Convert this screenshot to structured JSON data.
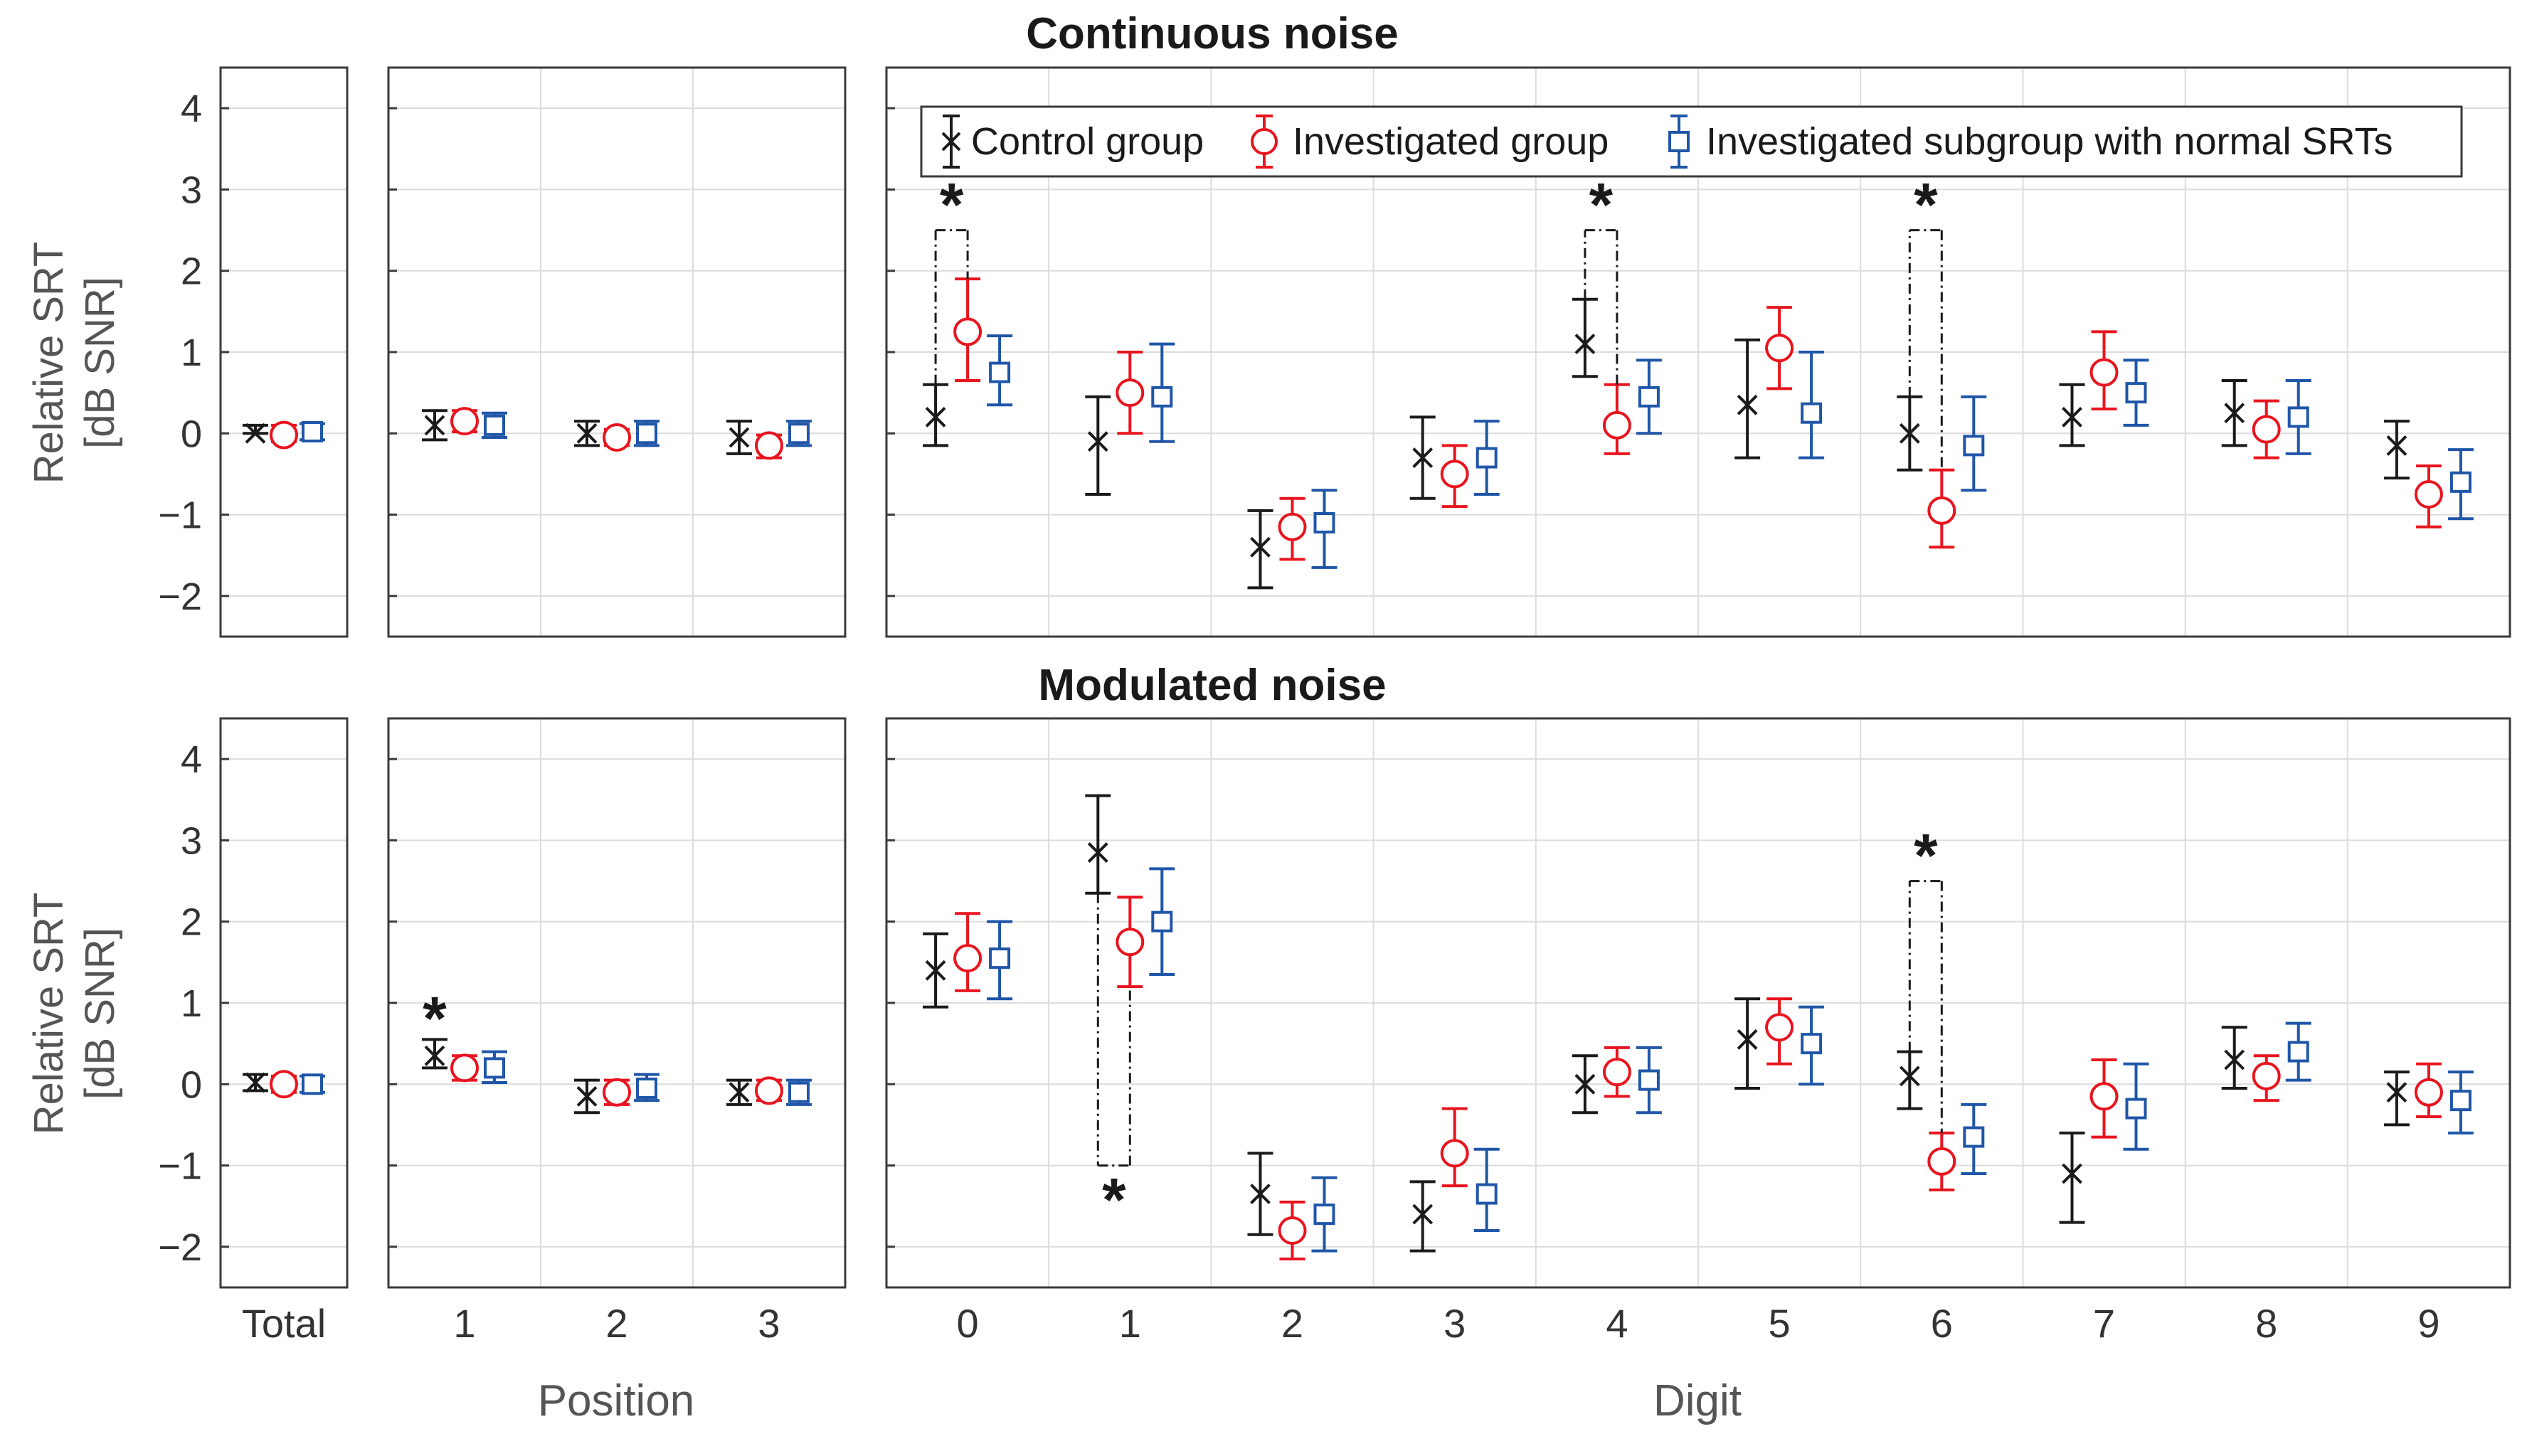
{
  "figure": {
    "ylabel_line1": "Relative SRT",
    "ylabel_line2": "[dB SNR]",
    "position_label": "Position",
    "digit_label": "Digit"
  },
  "legend": {
    "entries": [
      {
        "label": "Control group",
        "marker": "x",
        "color": "#1a1a1a"
      },
      {
        "label": "Investigated group",
        "marker": "o",
        "color": "#e8141e"
      },
      {
        "label": "Investigated subgroup with normal SRTs",
        "marker": "s",
        "color": "#1f56a8"
      }
    ]
  },
  "colors": {
    "control": "#1a1a1a",
    "investigated": "#e8141e",
    "subgroup": "#1f56a8",
    "grid": "#dcdcdc",
    "axis": "#3a3a3a"
  },
  "chart_data": [
    {
      "type": "errorbar",
      "title": "Continuous noise",
      "ylabel": "Relative SRT [dB SNR]",
      "ylim": [
        -2.5,
        4.5
      ],
      "yticks": [
        "4",
        "3",
        "2",
        "1",
        "0",
        "−1",
        "−2"
      ],
      "groups": {
        "total": {
          "categories": [
            "Total"
          ],
          "series": [
            {
              "name": "Control group",
              "values": [
                0.0
              ],
              "err": [
                [
                  0.0,
                  0.1
                ]
              ]
            },
            {
              "name": "Investigated group",
              "values": [
                -0.02
              ],
              "err": [
                [
                  -0.1,
                  0.1
                ]
              ]
            },
            {
              "name": "Investigated subgroup with normal SRTs",
              "values": [
                0.02
              ],
              "err": [
                [
                  -0.08,
                  0.12
                ]
              ]
            }
          ]
        },
        "position": {
          "categories": [
            "1",
            "2",
            "3"
          ],
          "xlabel": "Position",
          "series": [
            {
              "name": "Control group",
              "values": [
                0.1,
                0.0,
                -0.05
              ],
              "err": [
                [
                  -0.08,
                  0.28
                ],
                [
                  -0.15,
                  0.15
                ],
                [
                  -0.25,
                  0.15
                ]
              ]
            },
            {
              "name": "Investigated group",
              "values": [
                0.15,
                -0.05,
                -0.15
              ],
              "err": [
                [
                  0.02,
                  0.28
                ],
                [
                  -0.15,
                  0.05
                ],
                [
                  -0.3,
                  -0.02
                ]
              ]
            },
            {
              "name": "Investigated subgroup with normal SRTs",
              "values": [
                0.1,
                0.0,
                0.0
              ],
              "err": [
                [
                  -0.05,
                  0.25
                ],
                [
                  -0.15,
                  0.15
                ],
                [
                  -0.15,
                  0.15
                ]
              ]
            }
          ]
        },
        "digit": {
          "categories": [
            "0",
            "1",
            "2",
            "3",
            "4",
            "5",
            "6",
            "7",
            "8",
            "9"
          ],
          "xlabel": "Digit",
          "series": [
            {
              "name": "Control group",
              "values": [
                0.2,
                -0.1,
                -1.4,
                -0.3,
                1.1,
                0.35,
                0.0,
                0.2,
                0.25,
                -0.15
              ],
              "err": [
                [
                  -0.15,
                  0.6
                ],
                [
                  -0.75,
                  0.45
                ],
                [
                  -1.9,
                  -0.95
                ],
                [
                  -0.8,
                  0.2
                ],
                [
                  0.7,
                  1.65
                ],
                [
                  -0.3,
                  1.15
                ],
                [
                  -0.45,
                  0.45
                ],
                [
                  -0.15,
                  0.6
                ],
                [
                  -0.15,
                  0.65
                ],
                [
                  -0.55,
                  0.15
                ]
              ]
            },
            {
              "name": "Investigated group",
              "values": [
                1.25,
                0.5,
                -1.15,
                -0.5,
                0.1,
                1.05,
                -0.95,
                0.75,
                0.05,
                -0.75
              ],
              "err": [
                [
                  0.65,
                  1.9
                ],
                [
                  0.0,
                  1.0
                ],
                [
                  -1.55,
                  -0.8
                ],
                [
                  -0.9,
                  -0.15
                ],
                [
                  -0.25,
                  0.6
                ],
                [
                  0.55,
                  1.55
                ],
                [
                  -1.4,
                  -0.45
                ],
                [
                  0.3,
                  1.25
                ],
                [
                  -0.3,
                  0.4
                ],
                [
                  -1.15,
                  -0.4
                ]
              ]
            },
            {
              "name": "Investigated subgroup with normal SRTs",
              "values": [
                0.75,
                0.45,
                -1.1,
                -0.3,
                0.45,
                0.25,
                -0.15,
                0.5,
                0.2,
                -0.6
              ],
              "err": [
                [
                  0.35,
                  1.2
                ],
                [
                  -0.1,
                  1.1
                ],
                [
                  -1.65,
                  -0.7
                ],
                [
                  -0.75,
                  0.15
                ],
                [
                  0.0,
                  0.9
                ],
                [
                  -0.3,
                  1.0
                ],
                [
                  -0.7,
                  0.45
                ],
                [
                  0.1,
                  0.9
                ],
                [
                  -0.25,
                  0.65
                ],
                [
                  -1.05,
                  -0.2
                ]
              ]
            }
          ]
        }
      },
      "significance": [
        {
          "group": "digit",
          "index": 0,
          "from": "Control group",
          "to": "Investigated group",
          "y": 2.5,
          "label": "*",
          "label_pos": "above"
        },
        {
          "group": "digit",
          "index": 4,
          "from": "Control group",
          "to": "Investigated group",
          "y": 2.5,
          "label": "*",
          "label_pos": "above"
        },
        {
          "group": "digit",
          "index": 6,
          "from": "Control group",
          "to": "Investigated group",
          "y": 2.5,
          "label": "*",
          "label_pos": "above"
        }
      ],
      "position_stars": []
    },
    {
      "type": "errorbar",
      "title": "Modulated noise",
      "ylabel": "Relative SRT [dB SNR]",
      "ylim": [
        -2.5,
        4.5
      ],
      "yticks": [
        "4",
        "3",
        "2",
        "1",
        "0",
        "−1",
        "−2"
      ],
      "groups": {
        "total": {
          "categories": [
            "Total"
          ],
          "series": [
            {
              "name": "Control group",
              "values": [
                0.02
              ],
              "err": [
                [
                  -0.08,
                  0.12
                ]
              ]
            },
            {
              "name": "Investigated group",
              "values": [
                0.0
              ],
              "err": [
                [
                  -0.1,
                  0.1
                ]
              ]
            },
            {
              "name": "Investigated subgroup with normal SRTs",
              "values": [
                0.0
              ],
              "err": [
                [
                  -0.1,
                  0.1
                ]
              ]
            }
          ]
        },
        "position": {
          "categories": [
            "1",
            "2",
            "3"
          ],
          "xlabel": "Position",
          "series": [
            {
              "name": "Control group",
              "values": [
                0.35,
                -0.15,
                -0.1
              ],
              "err": [
                [
                  0.2,
                  0.55
                ],
                [
                  -0.35,
                  0.05
                ],
                [
                  -0.25,
                  0.05
                ]
              ]
            },
            {
              "name": "Investigated group",
              "values": [
                0.2,
                -0.1,
                -0.08
              ],
              "err": [
                [
                  0.05,
                  0.35
                ],
                [
                  -0.25,
                  0.05
                ],
                [
                  -0.2,
                  0.05
                ]
              ]
            },
            {
              "name": "Investigated subgroup with normal SRTs",
              "values": [
                0.2,
                -0.05,
                -0.1
              ],
              "err": [
                [
                  0.02,
                  0.4
                ],
                [
                  -0.2,
                  0.12
                ],
                [
                  -0.25,
                  0.05
                ]
              ]
            }
          ]
        },
        "digit": {
          "categories": [
            "0",
            "1",
            "2",
            "3",
            "4",
            "5",
            "6",
            "7",
            "8",
            "9"
          ],
          "xlabel": "Digit",
          "series": [
            {
              "name": "Control group",
              "values": [
                1.4,
                2.85,
                -1.35,
                -1.6,
                0.0,
                0.55,
                0.1,
                -1.1,
                0.3,
                -0.1
              ],
              "err": [
                [
                  0.95,
                  1.85
                ],
                [
                  2.35,
                  3.55
                ],
                [
                  -1.85,
                  -0.85
                ],
                [
                  -2.05,
                  -1.2
                ],
                [
                  -0.35,
                  0.35
                ],
                [
                  -0.05,
                  1.05
                ],
                [
                  -0.3,
                  0.4
                ],
                [
                  -1.7,
                  -0.6
                ],
                [
                  -0.05,
                  0.7
                ],
                [
                  -0.5,
                  0.15
                ]
              ]
            },
            {
              "name": "Investigated group",
              "values": [
                1.55,
                1.75,
                -1.8,
                -0.85,
                0.15,
                0.7,
                -0.95,
                -0.15,
                0.1,
                -0.1
              ],
              "err": [
                [
                  1.15,
                  2.1
                ],
                [
                  1.2,
                  2.3
                ],
                [
                  -2.15,
                  -1.45
                ],
                [
                  -1.25,
                  -0.3
                ],
                [
                  -0.15,
                  0.45
                ],
                [
                  0.25,
                  1.05
                ],
                [
                  -1.3,
                  -0.6
                ],
                [
                  -0.65,
                  0.3
                ],
                [
                  -0.2,
                  0.35
                ],
                [
                  -0.4,
                  0.25
                ]
              ]
            },
            {
              "name": "Investigated subgroup with normal SRTs",
              "values": [
                1.55,
                2.0,
                -1.6,
                -1.35,
                0.05,
                0.5,
                -0.65,
                -0.3,
                0.4,
                -0.2
              ],
              "err": [
                [
                  1.05,
                  2.0
                ],
                [
                  1.35,
                  2.65
                ],
                [
                  -2.05,
                  -1.15
                ],
                [
                  -1.8,
                  -0.8
                ],
                [
                  -0.35,
                  0.45
                ],
                [
                  0.0,
                  0.95
                ],
                [
                  -1.1,
                  -0.25
                ],
                [
                  -0.8,
                  0.25
                ],
                [
                  0.05,
                  0.75
                ],
                [
                  -0.6,
                  0.15
                ]
              ]
            }
          ]
        }
      },
      "significance": [
        {
          "group": "digit",
          "index": 1,
          "from": "Control group",
          "to": "Investigated group",
          "y": -1.0,
          "label": "*",
          "label_pos": "below"
        },
        {
          "group": "digit",
          "index": 6,
          "from": "Control group",
          "to": "Investigated group",
          "y": 2.5,
          "label": "*",
          "label_pos": "above"
        }
      ],
      "position_stars": [
        {
          "group": "position",
          "index": 0,
          "series": "Control group",
          "y": 0.9,
          "label": "*"
        }
      ]
    }
  ]
}
